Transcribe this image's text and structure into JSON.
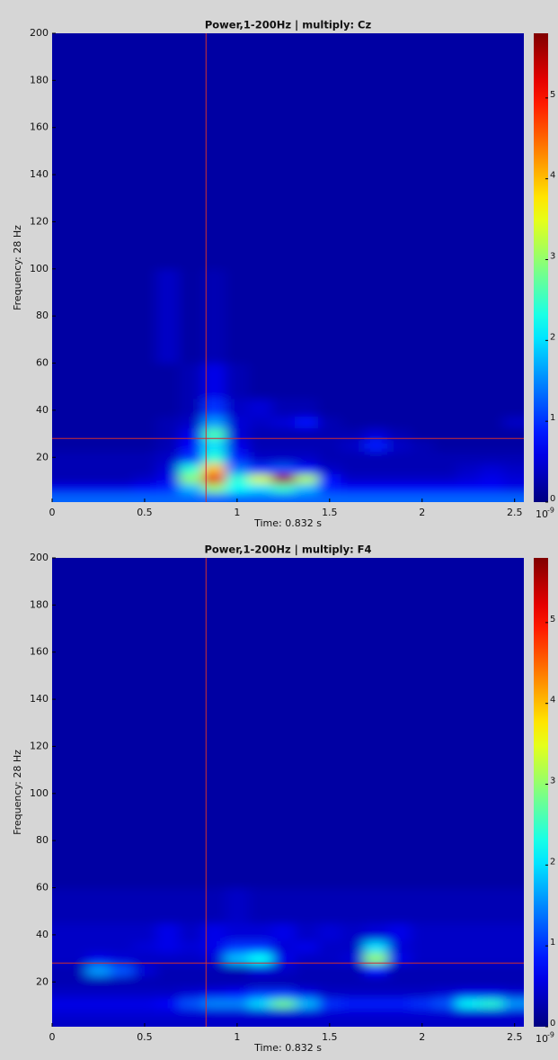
{
  "chart_data": [
    {
      "type": "heatmap",
      "title": "Power,1-200Hz | multiply: Cz",
      "xlabel": "Time: 0.832 s",
      "ylabel": "Frequency: 28 Hz",
      "x": [
        0,
        0.125,
        0.25,
        0.375,
        0.5,
        0.625,
        0.75,
        0.875,
        1,
        1.125,
        1.25,
        1.375,
        1.5,
        1.625,
        1.75,
        1.875,
        2,
        2.125,
        2.25,
        2.375,
        2.5
      ],
      "y": [
        3,
        7,
        11,
        15,
        20,
        25,
        30,
        35,
        40,
        50,
        70,
        130,
        190
      ],
      "z": [
        [
          1.3,
          1.3,
          1.3,
          1.3,
          1.3,
          1.3,
          1.3,
          1.3,
          1.3,
          1.3,
          1.3,
          1.3,
          1.3,
          1.3,
          1.3,
          1.3,
          1.3,
          1.3,
          1.3,
          1.3,
          1.3
        ],
        [
          0.6,
          0.6,
          0.6,
          0.6,
          0.7,
          0.9,
          1.8,
          3,
          2.2,
          2,
          2.5,
          1.8,
          0.9,
          0.7,
          0.7,
          0.7,
          0.7,
          0.7,
          0.7,
          0.7,
          0.6
        ],
        [
          0.3,
          0.3,
          0.3,
          0.3,
          0.4,
          0.6,
          3,
          5.2,
          2.4,
          3.4,
          5.6,
          3.2,
          0.8,
          0.4,
          0.4,
          0.4,
          0.4,
          0.4,
          0.5,
          0.6,
          0.5
        ],
        [
          0.3,
          0.3,
          0.3,
          0.3,
          0.3,
          0.5,
          2.4,
          4,
          1.4,
          1,
          1.2,
          0.8,
          0.4,
          0.3,
          0.3,
          0.3,
          0.3,
          0.3,
          0.4,
          0.5,
          0.4
        ],
        [
          0.3,
          0.3,
          0.3,
          0.3,
          0.3,
          0.4,
          1,
          2.4,
          0.9,
          0.4,
          0.4,
          0.4,
          0.3,
          0.3,
          0.3,
          0.3,
          0.3,
          0.3,
          0.3,
          0.3,
          0.3
        ],
        [
          0.2,
          0.2,
          0.2,
          0.2,
          0.2,
          0.3,
          0.7,
          2,
          0.6,
          0.3,
          0.3,
          0.3,
          0.3,
          0.4,
          0.9,
          0.4,
          0.3,
          0.2,
          0.2,
          0.2,
          0.2
        ],
        [
          0.2,
          0.2,
          0.2,
          0.2,
          0.2,
          0.3,
          0.6,
          2.6,
          0.5,
          0.3,
          0.3,
          0.3,
          0.3,
          0.3,
          0.5,
          0.3,
          0.2,
          0.2,
          0.2,
          0.2,
          0.2
        ],
        [
          0.2,
          0.2,
          0.2,
          0.2,
          0.2,
          0.3,
          0.4,
          1.6,
          0.5,
          0.4,
          0.5,
          0.8,
          0.3,
          0.2,
          0.2,
          0.2,
          0.2,
          0.2,
          0.2,
          0.2,
          0.4
        ],
        [
          0.2,
          0.2,
          0.2,
          0.2,
          0.2,
          0.2,
          0.3,
          1,
          0.4,
          0.5,
          0.3,
          0.3,
          0.2,
          0.2,
          0.2,
          0.2,
          0.2,
          0.2,
          0.2,
          0.2,
          0.2
        ],
        [
          0.2,
          0.2,
          0.2,
          0.2,
          0.2,
          0.2,
          0.3,
          0.6,
          0.3,
          0.2,
          0.2,
          0.2,
          0.2,
          0.2,
          0.2,
          0.2,
          0.2,
          0.2,
          0.2,
          0.2,
          0.2
        ],
        [
          0.2,
          0.2,
          0.2,
          0.2,
          0.2,
          0.4,
          0.2,
          0.3,
          0.2,
          0.2,
          0.2,
          0.2,
          0.2,
          0.2,
          0.2,
          0.2,
          0.2,
          0.2,
          0.2,
          0.2,
          0.2
        ],
        [
          0.2,
          0.2,
          0.2,
          0.2,
          0.2,
          0.2,
          0.2,
          0.2,
          0.2,
          0.2,
          0.2,
          0.2,
          0.2,
          0.2,
          0.2,
          0.2,
          0.2,
          0.2,
          0.2,
          0.2,
          0.2
        ],
        [
          0.2,
          0.2,
          0.2,
          0.2,
          0.2,
          0.2,
          0.2,
          0.2,
          0.2,
          0.2,
          0.2,
          0.2,
          0.2,
          0.2,
          0.2,
          0.2,
          0.2,
          0.2,
          0.2,
          0.2,
          0.2
        ]
      ],
      "xlim": [
        0,
        2.55
      ],
      "ylim": [
        1,
        200
      ],
      "xticks": [
        0,
        0.5,
        1,
        1.5,
        2,
        2.5
      ],
      "yticks": [
        20,
        40,
        60,
        80,
        100,
        120,
        140,
        160,
        180,
        200
      ],
      "colormap": "jet",
      "colorbar": {
        "lim": [
          0,
          5.8
        ],
        "ticks": [
          0,
          1,
          2,
          3,
          4,
          5
        ],
        "unit_base": "10",
        "unit_exponent": "-9"
      },
      "cursor": {
        "x": 0.832,
        "y": 28,
        "color": "#d03030"
      }
    },
    {
      "type": "heatmap",
      "title": "Power,1-200Hz | multiply: F4",
      "xlabel": "Time: 0.832 s",
      "ylabel": "Frequency: 28 Hz",
      "x": [
        0,
        0.125,
        0.25,
        0.375,
        0.5,
        0.625,
        0.75,
        0.875,
        1,
        1.125,
        1.25,
        1.375,
        1.5,
        1.625,
        1.75,
        1.875,
        2,
        2.125,
        2.25,
        2.375,
        2.5
      ],
      "y": [
        3,
        7,
        11,
        15,
        20,
        25,
        30,
        35,
        40,
        50,
        70,
        130,
        190
      ],
      "z": [
        [
          0.4,
          0.4,
          0.4,
          0.4,
          0.4,
          0.4,
          0.4,
          0.4,
          0.4,
          0.4,
          0.4,
          0.4,
          0.4,
          0.4,
          0.4,
          0.4,
          0.4,
          0.4,
          0.4,
          0.4,
          0.4
        ],
        [
          0.5,
          0.5,
          0.5,
          0.5,
          0.5,
          0.5,
          0.5,
          0.5,
          0.5,
          0.5,
          0.5,
          0.5,
          0.5,
          0.5,
          0.5,
          0.5,
          0.5,
          0.5,
          0.5,
          0.5,
          0.5
        ],
        [
          0.6,
          0.6,
          0.6,
          0.6,
          0.6,
          0.7,
          1.2,
          1.5,
          1.5,
          2,
          2.8,
          1.8,
          1,
          0.9,
          0.9,
          0.9,
          1,
          1.2,
          2.2,
          2.4,
          1.6
        ],
        [
          0.4,
          0.4,
          0.4,
          0.4,
          0.4,
          0.4,
          0.5,
          0.6,
          0.7,
          1,
          1,
          0.6,
          0.4,
          0.4,
          0.4,
          0.4,
          0.4,
          0.5,
          0.6,
          0.6,
          0.5
        ],
        [
          0.3,
          0.3,
          0.3,
          0.3,
          0.3,
          0.3,
          0.3,
          0.3,
          0.3,
          0.3,
          0.3,
          0.3,
          0.3,
          0.3,
          0.3,
          0.3,
          0.3,
          0.3,
          0.3,
          0.3,
          0.3
        ],
        [
          0.3,
          0.3,
          1.6,
          1.2,
          0.5,
          0.3,
          0.3,
          0.3,
          0.3,
          0.5,
          0.4,
          0.3,
          0.3,
          0.3,
          0.8,
          0.3,
          0.3,
          0.3,
          0.3,
          0.3,
          0.3
        ],
        [
          0.4,
          0.4,
          0.6,
          0.5,
          0.4,
          0.4,
          0.4,
          0.5,
          1.8,
          2.2,
          0.6,
          0.4,
          0.4,
          0.5,
          3,
          0.6,
          0.4,
          0.4,
          0.4,
          0.4,
          0.4
        ],
        [
          0.4,
          0.4,
          0.4,
          0.4,
          0.5,
          0.6,
          0.5,
          0.6,
          1,
          1,
          0.5,
          0.6,
          0.4,
          0.4,
          2,
          0.5,
          0.4,
          0.4,
          0.4,
          0.4,
          0.4
        ],
        [
          0.4,
          0.4,
          0.4,
          0.4,
          0.4,
          0.6,
          0.4,
          0.6,
          0.5,
          0.5,
          0.6,
          0.4,
          0.5,
          0.4,
          0.5,
          0.6,
          0.4,
          0.4,
          0.4,
          0.4,
          0.4
        ],
        [
          0.3,
          0.3,
          0.3,
          0.3,
          0.3,
          0.3,
          0.3,
          0.3,
          0.4,
          0.3,
          0.3,
          0.3,
          0.3,
          0.3,
          0.3,
          0.3,
          0.3,
          0.3,
          0.3,
          0.3,
          0.3
        ],
        [
          0.2,
          0.2,
          0.2,
          0.2,
          0.2,
          0.2,
          0.2,
          0.2,
          0.2,
          0.2,
          0.2,
          0.2,
          0.2,
          0.2,
          0.2,
          0.2,
          0.2,
          0.2,
          0.2,
          0.2,
          0.2
        ],
        [
          0.2,
          0.2,
          0.2,
          0.2,
          0.2,
          0.2,
          0.2,
          0.2,
          0.2,
          0.2,
          0.2,
          0.2,
          0.2,
          0.2,
          0.2,
          0.2,
          0.2,
          0.2,
          0.2,
          0.2,
          0.2
        ],
        [
          0.2,
          0.2,
          0.2,
          0.2,
          0.2,
          0.2,
          0.2,
          0.2,
          0.2,
          0.2,
          0.2,
          0.2,
          0.2,
          0.2,
          0.2,
          0.2,
          0.2,
          0.2,
          0.2,
          0.2,
          0.2
        ]
      ],
      "xlim": [
        0,
        2.55
      ],
      "ylim": [
        1,
        200
      ],
      "xticks": [
        0,
        0.5,
        1,
        1.5,
        2,
        2.5
      ],
      "yticks": [
        20,
        40,
        60,
        80,
        100,
        120,
        140,
        160,
        180,
        200
      ],
      "colormap": "jet",
      "colorbar": {
        "lim": [
          0,
          5.8
        ],
        "ticks": [
          0,
          1,
          2,
          3,
          4,
          5
        ],
        "unit_base": "10",
        "unit_exponent": "-9"
      },
      "cursor": {
        "x": 0.832,
        "y": 28,
        "color": "#d03030"
      }
    }
  ]
}
